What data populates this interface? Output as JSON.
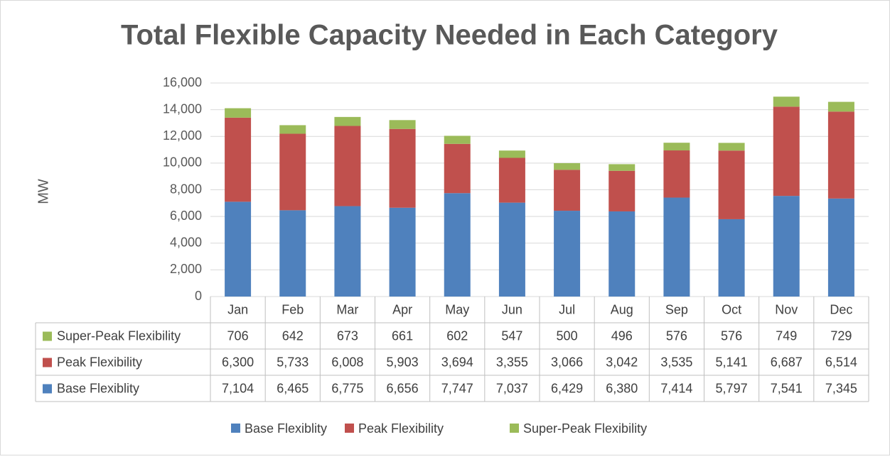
{
  "chart_data": {
    "type": "bar",
    "stacked": true,
    "title": "Total Flexible Capacity Needed in Each Category",
    "y_label": "MW",
    "categories": [
      "Jan",
      "Feb",
      "Mar",
      "Apr",
      "May",
      "Jun",
      "Jul",
      "Aug",
      "Sep",
      "Oct",
      "Nov",
      "Dec"
    ],
    "series": [
      {
        "name": "Base Flexiblity",
        "color": "#4f81bd",
        "values": [
          7104,
          6465,
          6775,
          6656,
          7747,
          7037,
          6429,
          6380,
          7414,
          5797,
          7541,
          7345
        ],
        "value_labels": [
          "7,104",
          "6,465",
          "6,775",
          "6,656",
          "7,747",
          "7,037",
          "6,429",
          "6,380",
          "7,414",
          "5,797",
          "7,541",
          "7,345"
        ]
      },
      {
        "name": "Peak Flexibility",
        "color": "#c0504d",
        "values": [
          6300,
          5733,
          6008,
          5903,
          3694,
          3355,
          3066,
          3042,
          3535,
          5141,
          6687,
          6514
        ],
        "value_labels": [
          "6,300",
          "5,733",
          "6,008",
          "5,903",
          "3,694",
          "3,355",
          "3,066",
          "3,042",
          "3,535",
          "5,141",
          "6,687",
          "6,514"
        ]
      },
      {
        "name": "Super-Peak Flexibility",
        "color": "#9bbb59",
        "values": [
          706,
          642,
          673,
          661,
          602,
          547,
          500,
          496,
          576,
          576,
          749,
          729
        ]
      }
    ],
    "ylim": [
      0,
      16000
    ],
    "yticks": [
      0,
      {
        "value": 2000,
        "label": "2,000"
      },
      {
        "value": 4000,
        "label": "4,000"
      },
      {
        "value": 6000,
        "label": "6,000"
      },
      {
        "value": 8000,
        "label": "8,000"
      },
      {
        "value": 10000,
        "label": "10,000"
      },
      {
        "value": 12000,
        "label": "12,000"
      },
      {
        "value": 14000,
        "label": "14,000"
      },
      {
        "value": 16000,
        "label": "16,000"
      }
    ],
    "grid": true,
    "legend": "bottom"
  }
}
